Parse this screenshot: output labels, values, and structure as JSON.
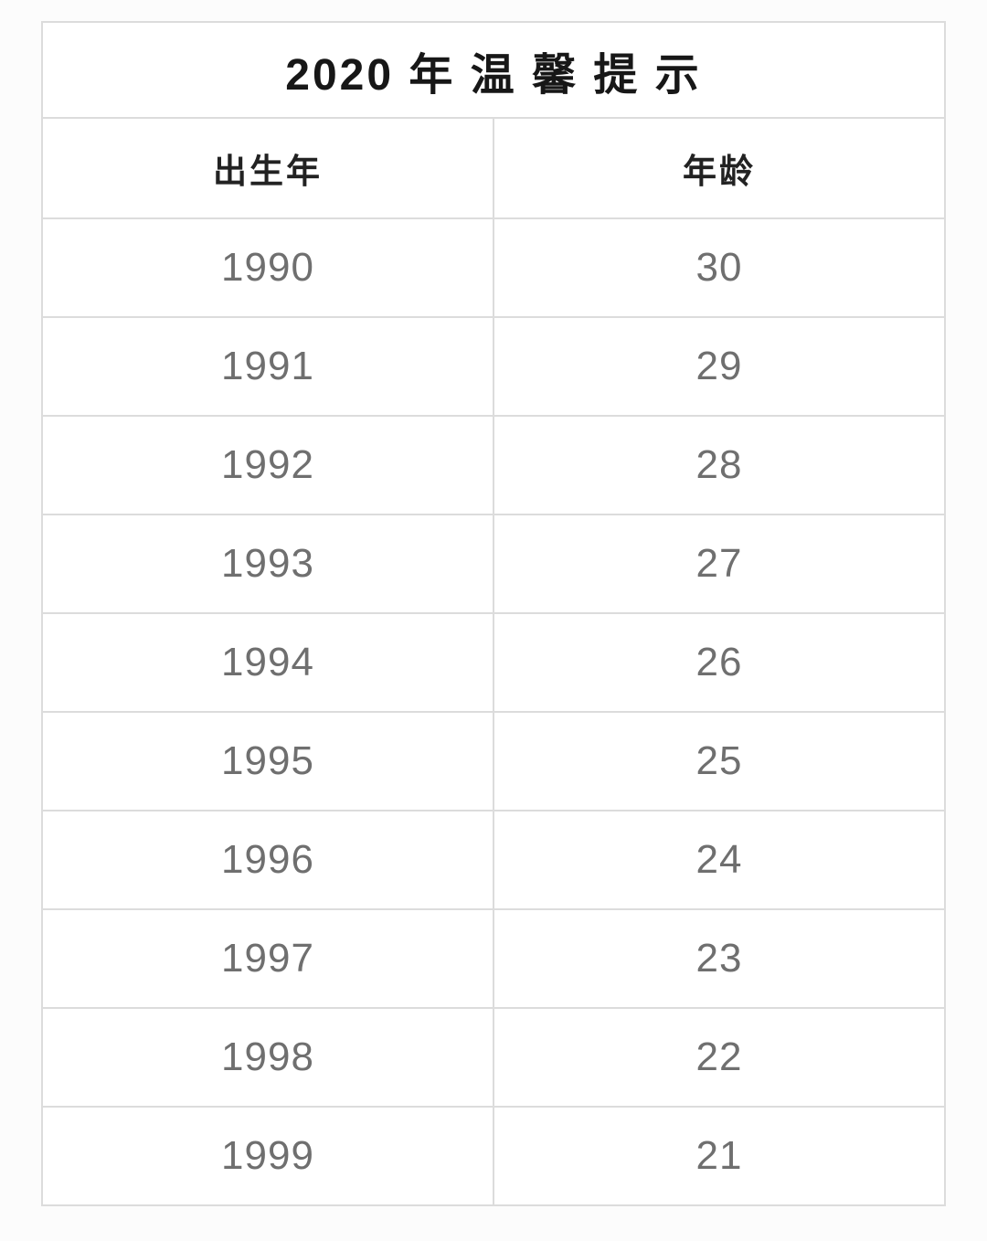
{
  "table": {
    "title": "2020 年 温 馨 提 示",
    "columns": [
      "出生年",
      "年龄"
    ],
    "rows": [
      {
        "birth_year": "1990",
        "age": "30"
      },
      {
        "birth_year": "1991",
        "age": "29"
      },
      {
        "birth_year": "1992",
        "age": "28"
      },
      {
        "birth_year": "1993",
        "age": "27"
      },
      {
        "birth_year": "1994",
        "age": "26"
      },
      {
        "birth_year": "1995",
        "age": "25"
      },
      {
        "birth_year": "1996",
        "age": "24"
      },
      {
        "birth_year": "1997",
        "age": "23"
      },
      {
        "birth_year": "1998",
        "age": "22"
      },
      {
        "birth_year": "1999",
        "age": "21"
      }
    ],
    "colors": {
      "border": "#dcdcdc",
      "title_text": "#171717",
      "header_text": "#222222",
      "cell_text": "#6f6f6f",
      "cell_background": "#ffffff",
      "page_background": "#fcfcfc"
    }
  },
  "chart_data": {
    "type": "table",
    "title": "2020年温馨提示",
    "columns": [
      "出生年",
      "年龄"
    ],
    "rows": [
      [
        1990,
        30
      ],
      [
        1991,
        29
      ],
      [
        1992,
        28
      ],
      [
        1993,
        27
      ],
      [
        1994,
        26
      ],
      [
        1995,
        25
      ],
      [
        1996,
        24
      ],
      [
        1997,
        23
      ],
      [
        1998,
        22
      ],
      [
        1999,
        21
      ]
    ]
  }
}
